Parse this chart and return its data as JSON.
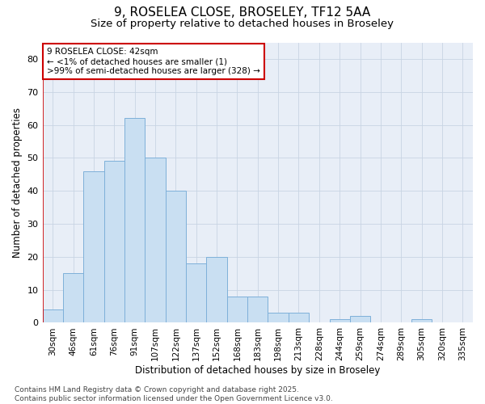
{
  "title_line1": "9, ROSELEA CLOSE, BROSELEY, TF12 5AA",
  "title_line2": "Size of property relative to detached houses in Broseley",
  "xlabel": "Distribution of detached houses by size in Broseley",
  "ylabel": "Number of detached properties",
  "bar_labels": [
    "30sqm",
    "46sqm",
    "61sqm",
    "76sqm",
    "91sqm",
    "107sqm",
    "122sqm",
    "137sqm",
    "152sqm",
    "168sqm",
    "183sqm",
    "198sqm",
    "213sqm",
    "228sqm",
    "244sqm",
    "259sqm",
    "274sqm",
    "289sqm",
    "305sqm",
    "320sqm",
    "335sqm"
  ],
  "bar_values": [
    4,
    15,
    46,
    49,
    62,
    50,
    40,
    18,
    20,
    8,
    8,
    3,
    3,
    0,
    1,
    2,
    0,
    0,
    1,
    0,
    0
  ],
  "bar_color": "#c9dff2",
  "bar_edge_color": "#7eb0d9",
  "background_color": "#ffffff",
  "plot_bg_color": "#e8eef7",
  "annotation_text": "9 ROSELEA CLOSE: 42sqm\n← <1% of detached houses are smaller (1)\n>99% of semi-detached houses are larger (328) →",
  "annotation_box_color": "#ffffff",
  "annotation_box_edge": "#cc0000",
  "red_line_x": 0,
  "ylim": [
    0,
    85
  ],
  "yticks": [
    0,
    10,
    20,
    30,
    40,
    50,
    60,
    70,
    80
  ],
  "footer_text": "Contains HM Land Registry data © Crown copyright and database right 2025.\nContains public sector information licensed under the Open Government Licence v3.0.",
  "grid_color": "#c8d4e3",
  "title_fontsize": 11,
  "subtitle_fontsize": 9.5,
  "tick_fontsize": 7.5,
  "ylabel_fontsize": 8.5,
  "xlabel_fontsize": 8.5,
  "annotation_fontsize": 7.5,
  "footer_fontsize": 6.5
}
